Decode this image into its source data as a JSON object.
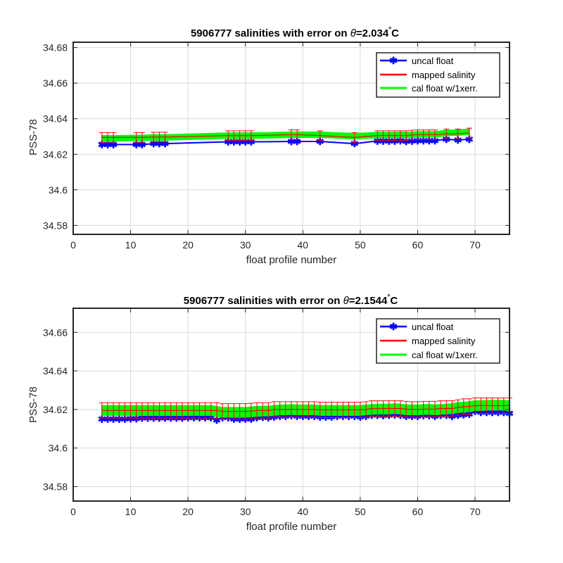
{
  "chart_data": [
    {
      "type": "line",
      "title_prefix": "5906777 salinities with error on ",
      "theta_symbol": "θ",
      "theta_value": "=2.034",
      "degree_mark": "°",
      "unit": "C",
      "xlabel": "float profile number",
      "ylabel": "PSS-78",
      "xlim": [
        0,
        76
      ],
      "ylim": [
        34.575,
        34.683
      ],
      "xticks": [
        0,
        10,
        20,
        30,
        40,
        50,
        60,
        70
      ],
      "yticks": [
        34.58,
        34.6,
        34.62,
        34.64,
        34.66,
        34.68
      ],
      "ytick_labels": [
        "34.58",
        "34.6",
        "34.62",
        "34.64",
        "34.66",
        "34.68"
      ],
      "grid": true,
      "legend_position": "top-right",
      "legend": [
        "uncal float",
        "mapped salinity",
        "cal float w/1xerr."
      ],
      "series": [
        {
          "name": "uncal float",
          "color": "#0000ff",
          "marker": "asterisk",
          "x": [
            5,
            6,
            7,
            11,
            12,
            14,
            15,
            16,
            27,
            28,
            29,
            30,
            31,
            38,
            39,
            43,
            49,
            53,
            54,
            55,
            56,
            57,
            58,
            59,
            60,
            61,
            62,
            63,
            65,
            67,
            69
          ],
          "y": [
            34.6255,
            34.6255,
            34.6255,
            34.6255,
            34.6255,
            34.626,
            34.626,
            34.626,
            34.627,
            34.627,
            34.627,
            34.627,
            34.627,
            34.6272,
            34.6272,
            34.6272,
            34.626,
            34.6275,
            34.6275,
            34.6275,
            34.6275,
            34.6277,
            34.6272,
            34.6275,
            34.6277,
            34.6277,
            34.6277,
            34.6277,
            34.6285,
            34.628,
            34.6285
          ]
        },
        {
          "name": "mapped salinity",
          "color": "#ff0000",
          "x": [
            5,
            6,
            7,
            11,
            12,
            14,
            15,
            16,
            27,
            28,
            29,
            30,
            31,
            38,
            39,
            43,
            49,
            53,
            54,
            55,
            56,
            57,
            58,
            59,
            60,
            61,
            62,
            63,
            65,
            67,
            69
          ],
          "y": [
            34.6295,
            34.6295,
            34.6295,
            34.6295,
            34.6295,
            34.6297,
            34.6297,
            34.6297,
            34.6305,
            34.6305,
            34.6305,
            34.6305,
            34.6305,
            34.631,
            34.631,
            34.6305,
            34.6295,
            34.6305,
            34.6305,
            34.6305,
            34.6305,
            34.6305,
            34.6305,
            34.6308,
            34.631,
            34.631,
            34.631,
            34.631,
            34.6315,
            34.6315,
            34.632
          ],
          "err": 0.0027
        },
        {
          "name": "cal float w/1xerr.",
          "color": "#00ff00",
          "x": [
            5,
            6,
            7,
            11,
            12,
            14,
            15,
            16,
            27,
            28,
            29,
            30,
            31,
            38,
            39,
            43,
            49,
            53,
            54,
            55,
            56,
            57,
            58,
            59,
            60,
            61,
            62,
            63,
            65,
            67,
            69
          ],
          "y": [
            34.629,
            34.629,
            34.629,
            34.6292,
            34.6292,
            34.6295,
            34.6295,
            34.6295,
            34.6305,
            34.6305,
            34.6305,
            34.6305,
            34.6305,
            34.631,
            34.631,
            34.631,
            34.6302,
            34.6308,
            34.6308,
            34.6308,
            34.6308,
            34.631,
            34.6308,
            34.631,
            34.6312,
            34.6312,
            34.6312,
            34.6312,
            34.632,
            34.6322,
            34.6327
          ],
          "err": 0.0015
        }
      ]
    },
    {
      "type": "line",
      "title_prefix": "5906777 salinities with error on ",
      "theta_symbol": "θ",
      "theta_value": "=2.1544",
      "degree_mark": "°",
      "unit": "C",
      "xlabel": "float profile number",
      "ylabel": "PSS-78",
      "xlim": [
        0,
        76
      ],
      "ylim": [
        34.5725,
        34.6725
      ],
      "xticks": [
        0,
        10,
        20,
        30,
        40,
        50,
        60,
        70
      ],
      "yticks": [
        34.58,
        34.6,
        34.62,
        34.64,
        34.66
      ],
      "ytick_labels": [
        "34.58",
        "34.6",
        "34.62",
        "34.64",
        "34.66"
      ],
      "grid": true,
      "legend_position": "top-right",
      "legend": [
        "uncal float",
        "mapped salinity",
        "cal float w/1xerr."
      ],
      "series": [
        {
          "name": "uncal float",
          "color": "#0000ff",
          "marker": "asterisk",
          "x": [
            5,
            6,
            7,
            8,
            9,
            10,
            11,
            12,
            13,
            14,
            15,
            16,
            17,
            18,
            19,
            20,
            21,
            22,
            23,
            24,
            25,
            26,
            27,
            28,
            29,
            30,
            31,
            32,
            33,
            34,
            35,
            36,
            37,
            38,
            39,
            40,
            41,
            42,
            43,
            44,
            45,
            46,
            47,
            48,
            49,
            50,
            51,
            52,
            53,
            54,
            55,
            56,
            57,
            58,
            59,
            60,
            61,
            62,
            63,
            64,
            65,
            66,
            67,
            68,
            69,
            70,
            71,
            72,
            73,
            74,
            75,
            76
          ],
          "y": [
            34.615,
            34.615,
            34.615,
            34.615,
            34.615,
            34.6152,
            34.6152,
            34.6155,
            34.6155,
            34.6155,
            34.6155,
            34.6155,
            34.6155,
            34.6155,
            34.6155,
            34.6158,
            34.6158,
            34.6158,
            34.6158,
            34.6158,
            34.6145,
            34.6158,
            34.6158,
            34.615,
            34.615,
            34.615,
            34.615,
            34.6158,
            34.616,
            34.6158,
            34.6162,
            34.6165,
            34.6165,
            34.6168,
            34.6165,
            34.6165,
            34.6165,
            34.6165,
            34.6162,
            34.6162,
            34.6162,
            34.6165,
            34.6165,
            34.6165,
            34.6165,
            34.6162,
            34.6165,
            34.617,
            34.617,
            34.6168,
            34.617,
            34.6172,
            34.617,
            34.6165,
            34.6165,
            34.6165,
            34.6168,
            34.6168,
            34.6165,
            34.617,
            34.617,
            34.6165,
            34.617,
            34.6172,
            34.6175,
            34.619,
            34.6185,
            34.6185,
            34.6185,
            34.6185,
            34.6185,
            34.618
          ]
        },
        {
          "name": "mapped salinity",
          "color": "#ff0000",
          "x": [
            5,
            6,
            7,
            8,
            9,
            10,
            11,
            12,
            13,
            14,
            15,
            16,
            17,
            18,
            19,
            20,
            21,
            22,
            23,
            24,
            25,
            26,
            27,
            28,
            29,
            30,
            31,
            32,
            33,
            34,
            35,
            36,
            37,
            38,
            39,
            40,
            41,
            42,
            43,
            44,
            45,
            46,
            47,
            48,
            49,
            50,
            51,
            52,
            53,
            54,
            55,
            56,
            57,
            58,
            59,
            60,
            61,
            62,
            63,
            64,
            65,
            66,
            67,
            68,
            69,
            70,
            71,
            72,
            73,
            74,
            75,
            76
          ],
          "y": [
            34.6195,
            34.6195,
            34.6195,
            34.6195,
            34.6195,
            34.6195,
            34.6195,
            34.6195,
            34.6195,
            34.6195,
            34.6195,
            34.6195,
            34.6195,
            34.6195,
            34.6195,
            34.6195,
            34.6195,
            34.6195,
            34.6195,
            34.6195,
            34.6195,
            34.619,
            34.619,
            34.619,
            34.619,
            34.619,
            34.6192,
            34.6195,
            34.6195,
            34.6195,
            34.62,
            34.62,
            34.62,
            34.62,
            34.62,
            34.62,
            34.62,
            34.62,
            34.6198,
            34.6198,
            34.6198,
            34.6198,
            34.6198,
            34.6198,
            34.6198,
            34.6198,
            34.62,
            34.6205,
            34.6205,
            34.6205,
            34.6205,
            34.6205,
            34.6205,
            34.6202,
            34.62,
            34.62,
            34.6202,
            34.6202,
            34.6202,
            34.6205,
            34.6205,
            34.6205,
            34.621,
            34.6215,
            34.6215,
            34.622,
            34.622,
            34.622,
            34.622,
            34.622,
            34.622,
            34.622
          ],
          "err": 0.004
        },
        {
          "name": "cal float w/1xerr.",
          "color": "#00ff00",
          "x": [
            5,
            6,
            7,
            8,
            9,
            10,
            11,
            12,
            13,
            14,
            15,
            16,
            17,
            18,
            19,
            20,
            21,
            22,
            23,
            24,
            25,
            26,
            27,
            28,
            29,
            30,
            31,
            32,
            33,
            34,
            35,
            36,
            37,
            38,
            39,
            40,
            41,
            42,
            43,
            44,
            45,
            46,
            47,
            48,
            49,
            50,
            51,
            52,
            53,
            54,
            55,
            56,
            57,
            58,
            59,
            60,
            61,
            62,
            63,
            64,
            65,
            66,
            67,
            68,
            69,
            70,
            71,
            72,
            73,
            74,
            75,
            76
          ],
          "y": [
            34.6195,
            34.6195,
            34.6195,
            34.6195,
            34.6195,
            34.6195,
            34.6195,
            34.6195,
            34.6195,
            34.6195,
            34.6195,
            34.6195,
            34.6195,
            34.6195,
            34.6195,
            34.6195,
            34.6195,
            34.6195,
            34.6195,
            34.6195,
            34.619,
            34.6185,
            34.6185,
            34.6185,
            34.6185,
            34.6185,
            34.6188,
            34.619,
            34.6192,
            34.6192,
            34.6195,
            34.6198,
            34.6198,
            34.62,
            34.6198,
            34.6198,
            34.6198,
            34.6198,
            34.6195,
            34.6195,
            34.6195,
            34.6195,
            34.6195,
            34.6195,
            34.6195,
            34.6195,
            34.6198,
            34.62,
            34.6202,
            34.6202,
            34.6202,
            34.6205,
            34.6202,
            34.6198,
            34.6198,
            34.6198,
            34.62,
            34.62,
            34.6198,
            34.62,
            34.6202,
            34.6205,
            34.621,
            34.6212,
            34.6215,
            34.622,
            34.622,
            34.6222,
            34.6222,
            34.6222,
            34.6222,
            34.622
          ],
          "err": 0.0025
        }
      ]
    }
  ]
}
